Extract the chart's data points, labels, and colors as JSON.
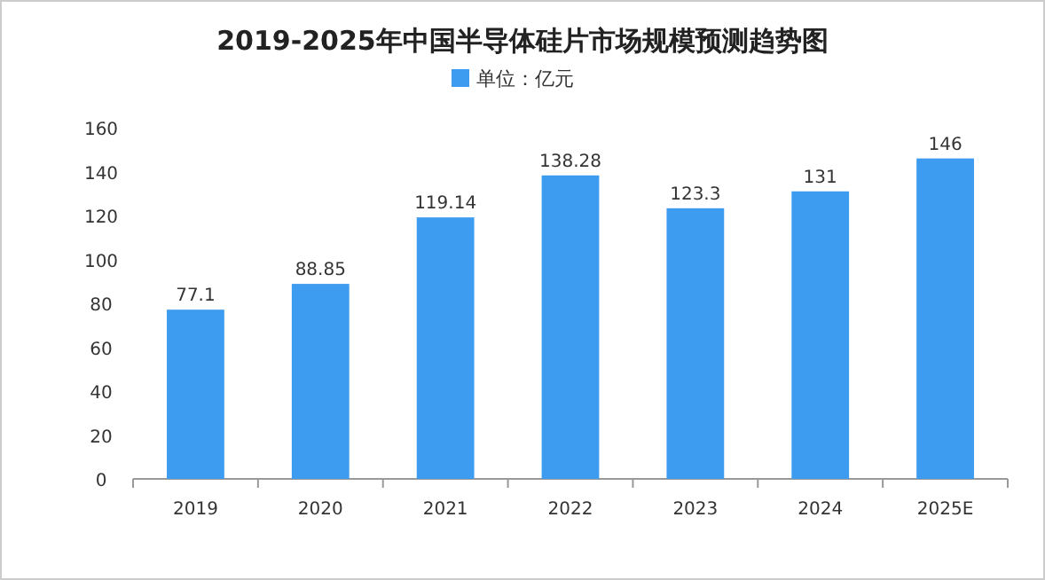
{
  "chart_data": {
    "type": "bar",
    "title": "2019-2025年中国半导体硅片市场规模预测趋势图",
    "categories": [
      "2019",
      "2020",
      "2021",
      "2022",
      "2023",
      "2024",
      "2025E"
    ],
    "series": [
      {
        "name": "单位：亿元",
        "color": "#3d9cf0",
        "values": [
          77.1,
          88.85,
          119.14,
          138.28,
          123.3,
          131,
          146
        ]
      }
    ],
    "ylim": [
      0,
      160
    ],
    "yticks": [
      0,
      20,
      40,
      60,
      80,
      100,
      120,
      140,
      160
    ],
    "data_labels": true,
    "legend": "top",
    "grid": false
  }
}
